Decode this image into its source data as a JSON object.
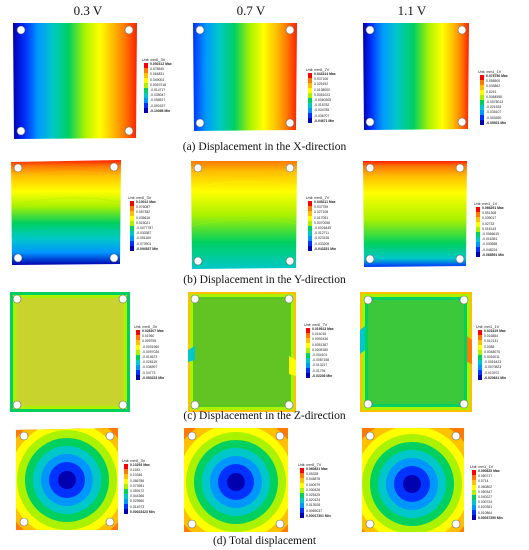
{
  "column_headers": [
    "0.3 V",
    "0.7 V",
    "1.1 V"
  ],
  "captions": [
    "(a)  Displacement in the X-direction",
    "(b)  Displacement in the Y-direction",
    "(c)  Displacement in the Z-direction",
    "(d)  Total displacement"
  ],
  "rows": [
    {
      "legends": [
        {
          "unit": "Unit: mm",
          "title": "0_3V",
          "labels": [
            "0.092312 Max",
            "0.078540",
            "0.064831",
            "0.049003",
            "0.0057018",
            "-0.014717",
            "-0.035047",
            "-0.058517",
            "-0.090157",
            "-0.10398 Min"
          ]
        },
        {
          "unit": "Unit: mm",
          "title": "0_7V",
          "labels": [
            "0.043314 Max",
            "0.037106",
            "0.025192",
            "0.0138000",
            "0.0051023",
            "-0.0060305",
            "-0.016782",
            "-0.034785",
            "-0.036707",
            "-0.04671 Min"
          ]
        },
        {
          "unit": "Unit: mm",
          "title": "1_1V",
          "labels": [
            "0.078756 Max",
            "0.055500",
            "0.033862",
            "0.0241",
            "0.0084598",
            "-0.0078013",
            "-0.021533",
            "-0.035107",
            "-0.053450",
            "-0.05921 Min"
          ]
        }
      ]
    },
    {
      "legends": [
        {
          "unit": "Unit: mm",
          "title": "0_3V",
          "labels": [
            "0.10012 Max",
            "0.076087",
            "0.057352",
            "0.035616",
            "0.015021",
            "-0.0077787",
            "-0.030387",
            "-0.051160",
            "-0.073901",
            "-0.094537 Min"
          ]
        },
        {
          "unit": "Unit: mm",
          "title": "0_7V",
          "labels": [
            "0.045211 Max",
            "0.037759",
            "0.027108",
            "0.017051",
            "0.0070056",
            "-0.0026449",
            "-0.012711",
            "-0.023155",
            "-0.033205",
            "-0.043251 Min"
          ]
        },
        {
          "unit": "Unit: mm",
          "title": "1_1V",
          "labels": [
            "0.066291 Max",
            "0.051308",
            "0.039017",
            "0.02733",
            "0.016143",
            "-0.0066619",
            "-0.016351",
            "-0.030658",
            "-0.048224",
            "-0.068591 Min"
          ]
        }
      ]
    },
    {
      "legends": [
        {
          "unit": "Unit: mm",
          "title": "0_3V",
          "labels": [
            "0.028107 Max",
            "0.01960",
            "0.009795",
            "-0.0001960",
            "-0.0097026",
            "-0.019673",
            "-0.028119",
            "-0.036997",
            "-0.04773",
            "-0.053223 Min"
          ]
        },
        {
          "unit": "Unit: mm",
          "title": "0_7V",
          "labels": [
            "0.019913 Max",
            "0.014018",
            "0.0092436",
            "0.0051387",
            "0.0005180",
            "-0.004101",
            "-0.0087158",
            "-0.013217",
            "-0.01794",
            "-0.02236 Min"
          ]
        },
        {
          "unit": "Unit: mm",
          "title": "1_1V",
          "labels": [
            "0.021619 Max",
            "0.016854",
            "0.012131",
            "0.0085",
            "0.0048075",
            "0.0016011",
            "-0.0016423",
            "-0.0070823",
            "-0.013972",
            "-0.023641 Min"
          ]
        }
      ]
    },
    {
      "legends": [
        {
          "unit": "Unit: mm",
          "title": "0_3V",
          "labels": [
            "0.13293 Max",
            "0.1182",
            "0.10346",
            "0.086786",
            "0.073981",
            "0.059172",
            "0.044366",
            "0.029560",
            "0.014973",
            "0.00023423 Min"
          ]
        },
        {
          "unit": "Unit: mm",
          "title": "0_7V",
          "labels": [
            "0.060831 Max",
            "0.05328",
            "0.045878",
            "0.040979",
            "0.030426",
            "0.025425",
            "0.020124",
            "0.013928",
            "0.0069037",
            "0.00017301 Min"
          ]
        },
        {
          "unit": "Unit: mm",
          "title": "1_1V",
          "labels": [
            "0.090825 Max",
            "0.080717",
            "0.0714",
            "0.060802",
            "0.050347",
            "0.040227",
            "0.030724",
            "0.020361",
            "0.010864",
            "0.00037390 Min"
          ]
        }
      ]
    }
  ],
  "colors": {
    "scale": [
      "#ff0000",
      "#ff7a00",
      "#ffc000",
      "#ffff00",
      "#aaf200",
      "#00d060",
      "#00c8c8",
      "#0096ff",
      "#0032ff",
      "#0000b0"
    ]
  }
}
